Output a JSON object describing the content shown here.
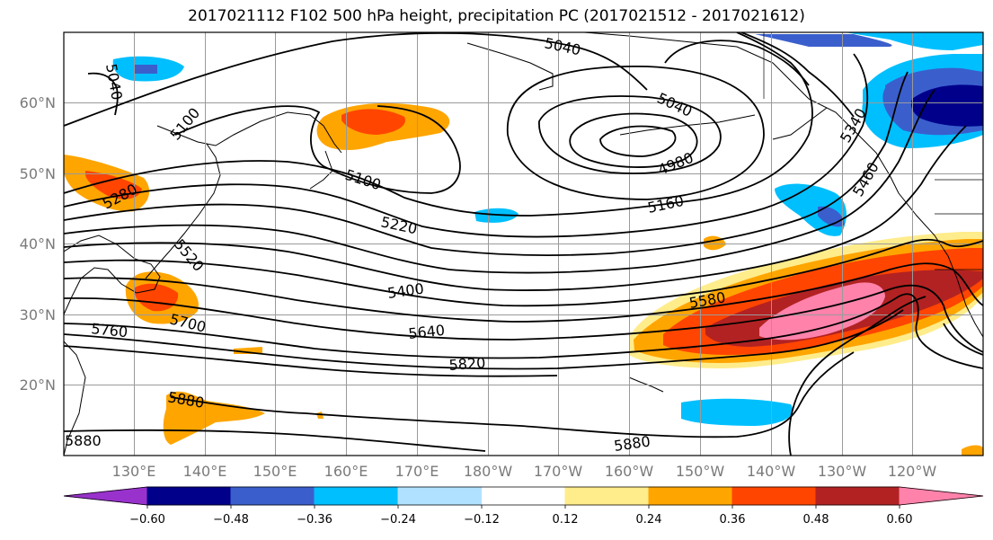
{
  "title": "2017021112 F102 500 hPa height, precipitation PC (2017021512 - 2017021612)",
  "map": {
    "lon_labels": [
      "130°E",
      "140°E",
      "150°E",
      "160°E",
      "170°E",
      "180°W",
      "170°W",
      "160°W",
      "150°W",
      "140°W",
      "130°W",
      "120°W"
    ],
    "lat_labels": [
      "60°N",
      "50°N",
      "40°N",
      "30°N",
      "20°N"
    ],
    "contour_labels": [
      "5040",
      "5040",
      "5040",
      "5100",
      "5100",
      "5280",
      "4980",
      "5160",
      "5220",
      "5340",
      "5400",
      "5460",
      "5520",
      "5580",
      "5640",
      "5700",
      "5760",
      "5820",
      "5880",
      "5880",
      "5880"
    ]
  },
  "colorbar": {
    "ticks": [
      "−0.60",
      "−0.48",
      "−0.36",
      "−0.24",
      "−0.12",
      "0.12",
      "0.24",
      "0.36",
      "0.48",
      "0.60"
    ],
    "colors": [
      "#9932CC",
      "#00008B",
      "#3A5FCD",
      "#00BFFF",
      "#B0E2FF",
      "#FFFFFF",
      "#FFEC8B",
      "#FFA500",
      "#FF4500",
      "#B22222",
      "#FF82AB"
    ]
  }
}
